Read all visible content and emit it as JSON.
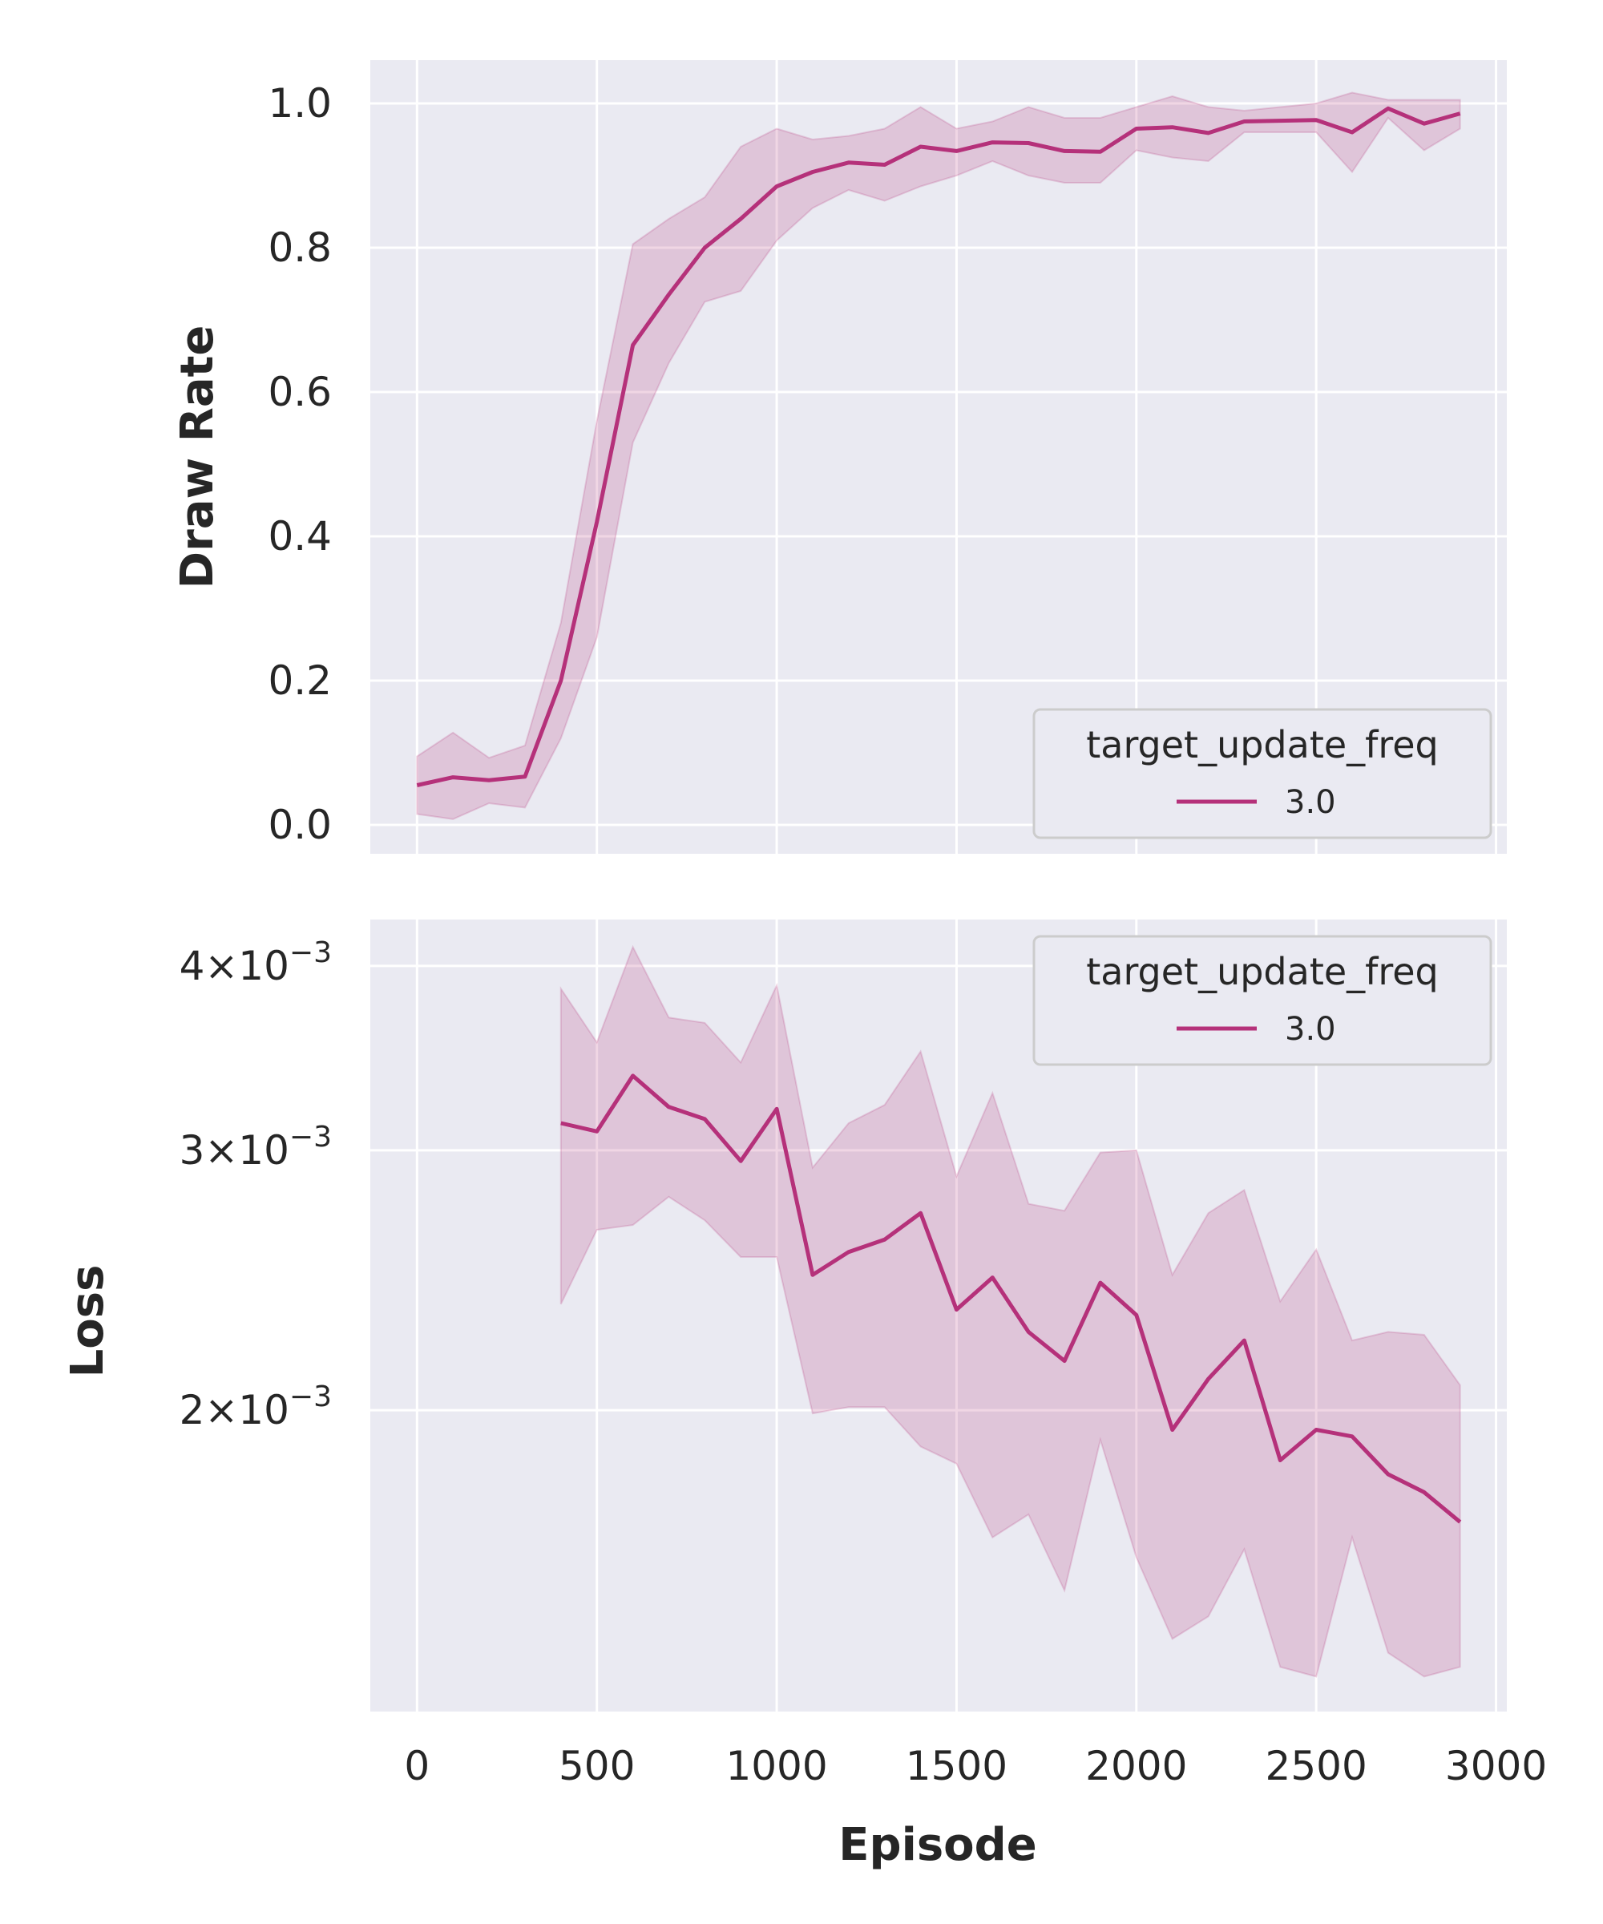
{
  "chart_data": [
    {
      "type": "line",
      "name": "draw_rate_panel",
      "xlabel": "",
      "ylabel": "Draw Rate",
      "xlim": [
        -130,
        3030
      ],
      "ylim": [
        -0.04,
        1.06
      ],
      "x_ticks": [
        0,
        500,
        1000,
        1500,
        2000,
        2500,
        3000
      ],
      "y_ticks": [
        0.0,
        0.2,
        0.4,
        0.6,
        0.8,
        1.0
      ],
      "y_tick_labels": [
        "0.0",
        "0.2",
        "0.4",
        "0.6",
        "0.8",
        "1.0"
      ],
      "grid": true,
      "legend": {
        "title": "target_update_freq",
        "placement": "lower-right",
        "entries": [
          "3.0"
        ]
      },
      "series": [
        {
          "name": "3.0",
          "color": "#b5317a",
          "x": [
            0,
            100,
            200,
            300,
            400,
            500,
            600,
            700,
            800,
            900,
            1000,
            1100,
            1200,
            1300,
            1400,
            1500,
            1600,
            1700,
            1800,
            1900,
            2000,
            2100,
            2200,
            2300,
            2400,
            2500,
            2600,
            2700,
            2800,
            2900
          ],
          "y": [
            0.055,
            0.066,
            0.062,
            0.067,
            0.2,
            0.42,
            0.665,
            0.735,
            0.8,
            0.84,
            0.885,
            0.905,
            0.918,
            0.915,
            0.94,
            0.934,
            0.946,
            0.945,
            0.934,
            0.933,
            0.965,
            0.967,
            0.959,
            0.975,
            0.976,
            0.977,
            0.96,
            0.993,
            0.972,
            0.986
          ],
          "ci_lower": [
            0.015,
            0.008,
            0.03,
            0.024,
            0.12,
            0.26,
            0.53,
            0.64,
            0.725,
            0.74,
            0.81,
            0.855,
            0.88,
            0.865,
            0.885,
            0.9,
            0.92,
            0.9,
            0.89,
            0.89,
            0.935,
            0.925,
            0.92,
            0.96,
            0.96,
            0.96,
            0.905,
            0.98,
            0.935,
            0.965
          ],
          "ci_upper": [
            0.095,
            0.128,
            0.093,
            0.11,
            0.28,
            0.56,
            0.805,
            0.84,
            0.87,
            0.94,
            0.965,
            0.95,
            0.955,
            0.965,
            0.995,
            0.965,
            0.975,
            0.995,
            0.98,
            0.98,
            0.995,
            1.01,
            0.995,
            0.99,
            0.995,
            1.0,
            1.015,
            1.005,
            1.005,
            1.005
          ]
        }
      ]
    },
    {
      "type": "line",
      "name": "loss_panel",
      "xlabel": "Episode",
      "ylabel": "Loss",
      "xlim": [
        -130,
        3030
      ],
      "ylim": [
        0.00125,
        0.0043
      ],
      "yscale": "log",
      "x_ticks": [
        0,
        500,
        1000,
        1500,
        2000,
        2500,
        3000
      ],
      "x_tick_labels": [
        "0",
        "500",
        "1000",
        "1500",
        "2000",
        "2500",
        "3000"
      ],
      "y_ticks": [
        0.002,
        0.003,
        0.004
      ],
      "y_tick_labels": [
        {
          "mantissa": "2",
          "exp": "−3"
        },
        {
          "mantissa": "3",
          "exp": "−3"
        },
        {
          "mantissa": "4",
          "exp": "−3"
        }
      ],
      "grid": true,
      "legend": {
        "title": "target_update_freq",
        "placement": "upper-right",
        "entries": [
          "3.0"
        ]
      },
      "series": [
        {
          "name": "3.0",
          "color": "#b5317a",
          "x": [
            400,
            500,
            600,
            700,
            800,
            900,
            1000,
            1100,
            1200,
            1300,
            1400,
            1500,
            1600,
            1700,
            1800,
            1900,
            2000,
            2100,
            2200,
            2300,
            2400,
            2500,
            2600,
            2700,
            2800,
            2900
          ],
          "y": [
            0.00313,
            0.00309,
            0.00337,
            0.00321,
            0.00315,
            0.00295,
            0.0032,
            0.00247,
            0.00256,
            0.00261,
            0.00272,
            0.00234,
            0.00246,
            0.00226,
            0.00216,
            0.00244,
            0.00232,
            0.00194,
            0.0021,
            0.00223,
            0.00185,
            0.00194,
            0.00192,
            0.00181,
            0.00176,
            0.00168
          ],
          "ci_lower": [
            0.00236,
            0.00265,
            0.00267,
            0.00279,
            0.00269,
            0.00254,
            0.00254,
            0.00199,
            0.00201,
            0.00201,
            0.00189,
            0.00184,
            0.00164,
            0.0017,
            0.00151,
            0.00191,
            0.00159,
            0.0014,
            0.00145,
            0.00161,
            0.00134,
            0.00132,
            0.00164,
            0.00137,
            0.00132,
            0.00134
          ],
          "ci_upper": [
            0.00386,
            0.00355,
            0.00412,
            0.00369,
            0.00366,
            0.00344,
            0.00388,
            0.00292,
            0.00313,
            0.00322,
            0.0035,
            0.00288,
            0.00328,
            0.00276,
            0.00273,
            0.00299,
            0.003,
            0.00247,
            0.00272,
            0.00282,
            0.00237,
            0.00257,
            0.00223,
            0.00226,
            0.00225,
            0.00208
          ]
        }
      ]
    }
  ]
}
